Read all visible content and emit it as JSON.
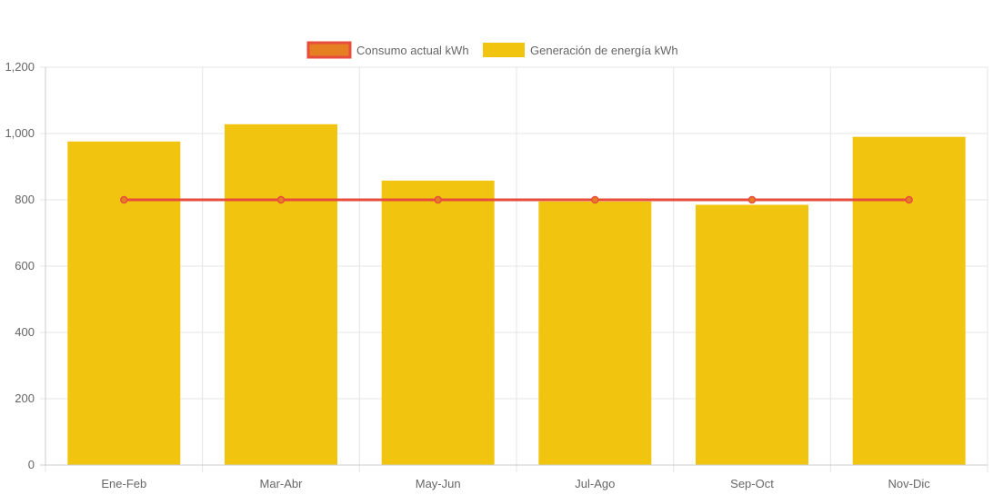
{
  "chart_data": {
    "type": "bar",
    "categories": [
      "Ene-Feb",
      "Mar-Abr",
      "May-Jun",
      "Jul-Ago",
      "Sep-Oct",
      "Nov-Dic"
    ],
    "ylim": [
      0,
      1200
    ],
    "yticks": [
      "0",
      "200",
      "400",
      "600",
      "800",
      "1,000",
      "1,200"
    ],
    "ytick_values": [
      0,
      200,
      400,
      600,
      800,
      1000,
      1200
    ],
    "grid": true,
    "legend_position": "top-center",
    "series": [
      {
        "name": "Consumo actual kWh",
        "type": "line",
        "values": [
          800,
          800,
          800,
          800,
          800,
          800
        ],
        "color": "#e74c3c",
        "fill_color": "#e67e22"
      },
      {
        "name": "Generación de energía kWh",
        "type": "bar",
        "values": [
          976,
          1028,
          858,
          795,
          785,
          990
        ],
        "color": "#f1c40f"
      }
    ]
  }
}
